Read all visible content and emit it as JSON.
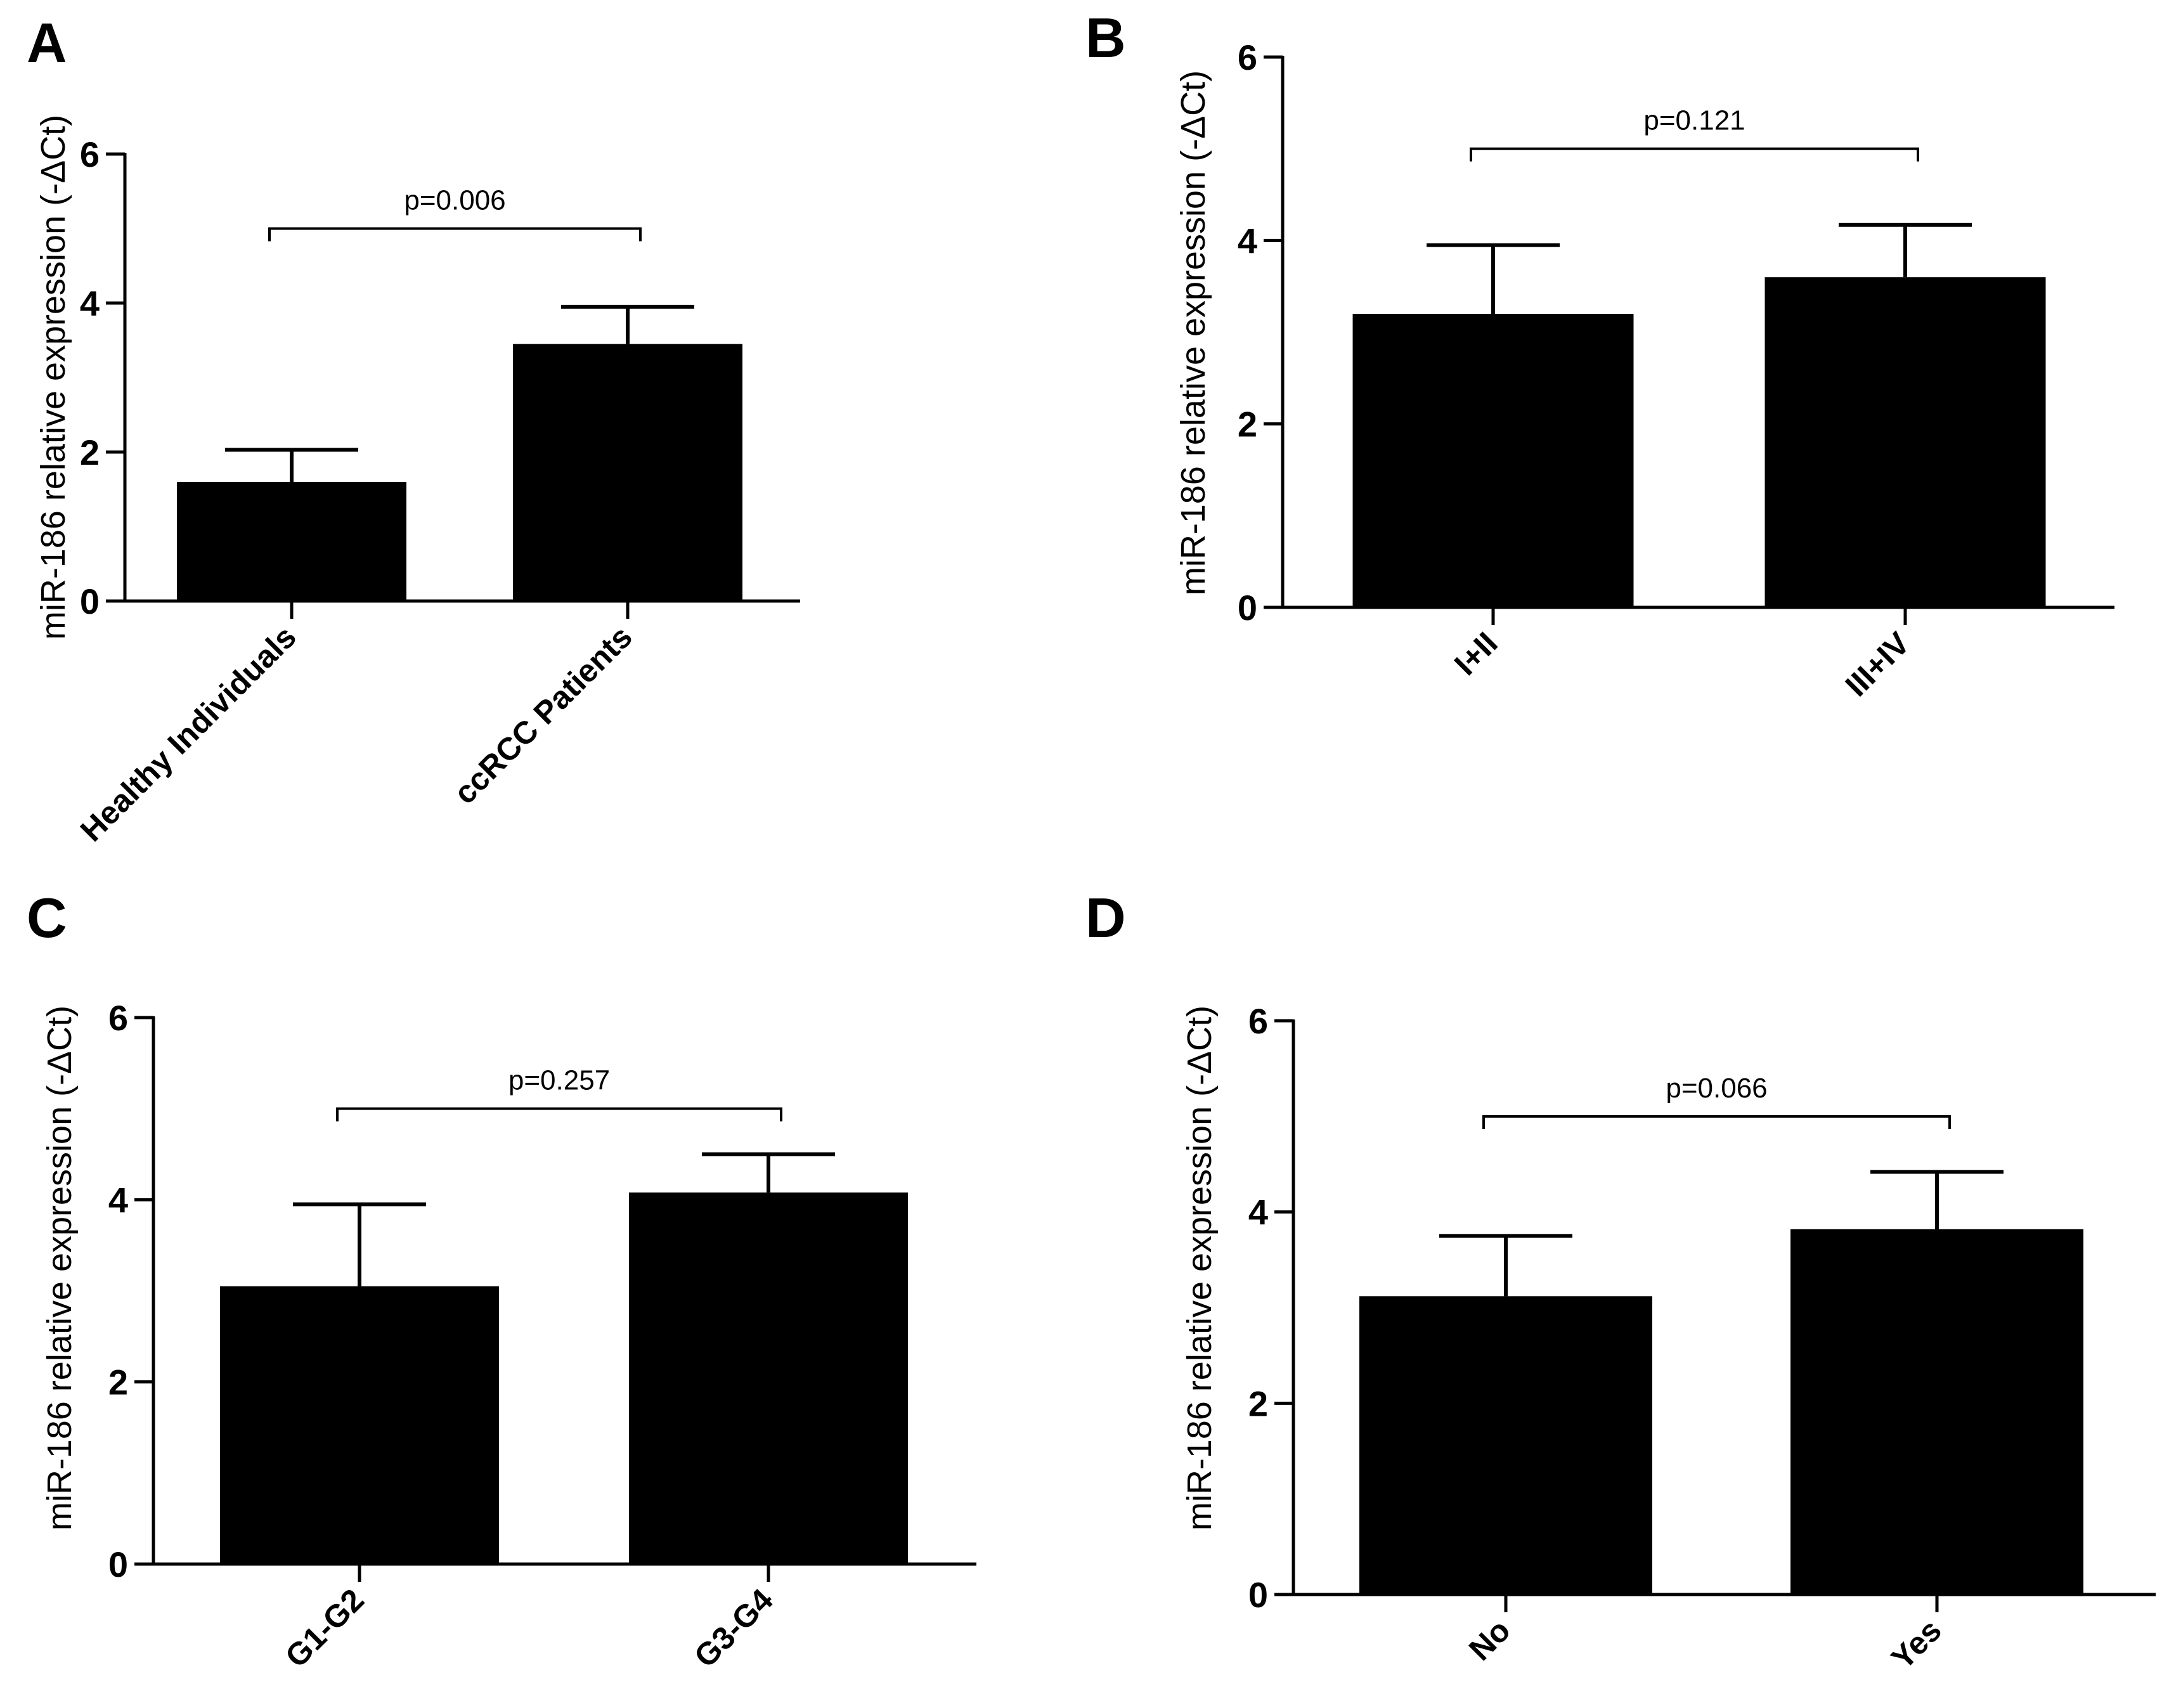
{
  "figure": {
    "background": "#ffffff",
    "bar_color": "#000000"
  },
  "chart_data": [
    {
      "panel": "A",
      "type": "bar",
      "categories": [
        "Healthy Individuals",
        "ccRCC Patients"
      ],
      "values": [
        1.6,
        3.45
      ],
      "error_plus": [
        0.43,
        0.5
      ],
      "ylabel": "miR-186 relative expression (-ΔCt)",
      "ylim": [
        0,
        6
      ],
      "yticks": [
        0,
        2,
        4,
        6
      ],
      "grid": false,
      "annotation": {
        "text": "p=0.006",
        "between": [
          0,
          1
        ],
        "y": 5.0
      }
    },
    {
      "panel": "B",
      "type": "bar",
      "categories": [
        "I+II",
        "III+IV"
      ],
      "values": [
        3.2,
        3.6
      ],
      "error_plus": [
        0.75,
        0.57
      ],
      "ylabel": "miR-186 relative expression (-ΔCt)",
      "ylim": [
        0,
        6
      ],
      "yticks": [
        0,
        2,
        4,
        6
      ],
      "grid": false,
      "annotation": {
        "text": "p=0.121",
        "between": [
          0,
          1
        ],
        "y": 5.0
      }
    },
    {
      "panel": "C",
      "type": "bar",
      "categories": [
        "G1-G2",
        "G3-G4"
      ],
      "values": [
        3.05,
        4.08
      ],
      "error_plus": [
        0.9,
        0.42
      ],
      "ylabel": "miR-186 relative expression (-ΔCt)",
      "ylim": [
        0,
        6
      ],
      "yticks": [
        0,
        2,
        4,
        6
      ],
      "grid": false,
      "annotation": {
        "text": "p=0.257",
        "between": [
          0,
          1
        ],
        "y": 5.0
      }
    },
    {
      "panel": "D",
      "type": "bar",
      "categories": [
        "No",
        "Yes"
      ],
      "values": [
        3.12,
        3.82
      ],
      "error_plus": [
        0.63,
        0.6
      ],
      "ylabel": "miR-186 relative expression (-ΔCt)",
      "ylim": [
        0,
        6
      ],
      "yticks": [
        0,
        2,
        4,
        6
      ],
      "grid": false,
      "annotation": {
        "text": "p=0.066",
        "between": [
          0,
          1
        ],
        "y": 5.0
      }
    }
  ]
}
